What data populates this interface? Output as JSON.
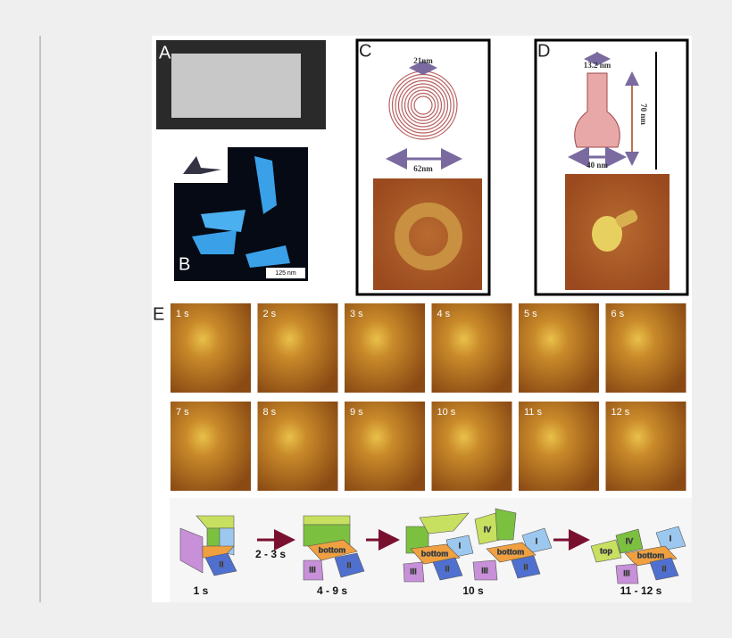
{
  "panels": {
    "a": {
      "label": "A"
    },
    "b": {
      "label": "B",
      "scale_bar": "125 nm"
    },
    "c": {
      "label": "C",
      "inner_diameter": "21nm",
      "outer_diameter": "62nm"
    },
    "d": {
      "label": "D",
      "top_width": "13.2 nm",
      "height": "70 nm",
      "width": "40 nm"
    },
    "e": {
      "label": "E",
      "frames": [
        "1 s",
        "2 s",
        "3 s",
        "4 s",
        "5 s",
        "6 s",
        "7 s",
        "8 s",
        "9 s",
        "10 s",
        "11 s",
        "12 s"
      ],
      "diagram": {
        "stages": [
          "1 s",
          "4 - 9 s",
          "10 s",
          "11 - 12 s"
        ],
        "transition": "2 - 3 s",
        "faces": {
          "bottom": "bottom",
          "one": "I",
          "two": "II",
          "three": "III",
          "four": "IV",
          "top": "top"
        }
      }
    }
  }
}
